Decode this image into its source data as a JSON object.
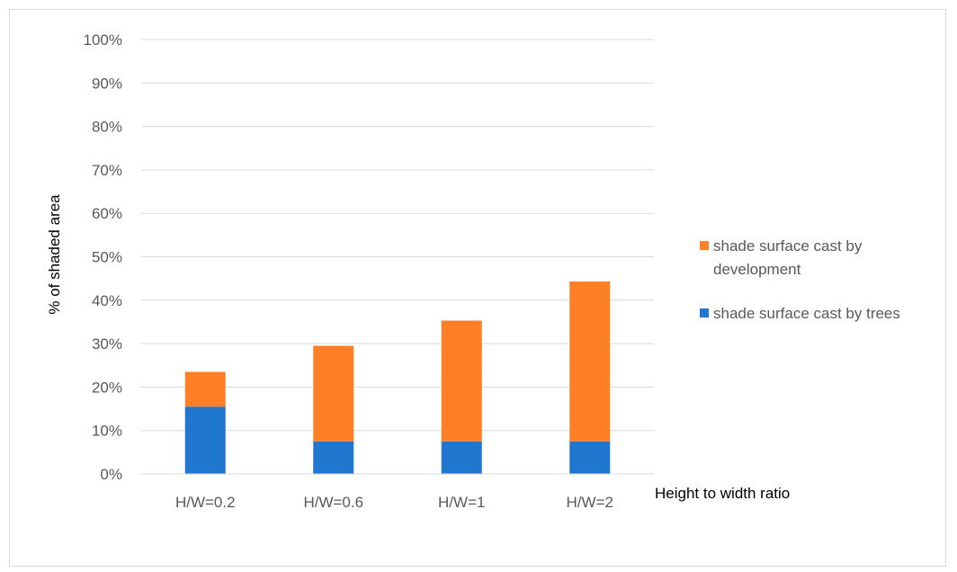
{
  "chart_data": {
    "type": "bar",
    "stacked": true,
    "categories": [
      "H/W=0.2",
      "H/W=0.6",
      "H/W=1",
      "H/W=2"
    ],
    "series": [
      {
        "name": "shade surface cast by trees",
        "color": "#1f77d0",
        "values": [
          0.155,
          0.075,
          0.075,
          0.075
        ]
      },
      {
        "name": "shade surface cast by development",
        "color": "#ff7f27",
        "values": [
          0.08,
          0.22,
          0.278,
          0.368
        ]
      }
    ],
    "title": "",
    "xlabel": "Height to width ratio",
    "ylabel": "% of shaded area",
    "ylim": [
      0,
      1
    ],
    "yticks": [
      "0%",
      "10%",
      "20%",
      "30%",
      "40%",
      "50%",
      "60%",
      "70%",
      "80%",
      "90%",
      "100%"
    ],
    "grid": true,
    "legend_position": "right",
    "legend_labels": [
      [
        "shade surface cast by",
        "development"
      ],
      [
        "shade surface cast by trees"
      ]
    ],
    "gridline_color": "#d9d9d9"
  }
}
